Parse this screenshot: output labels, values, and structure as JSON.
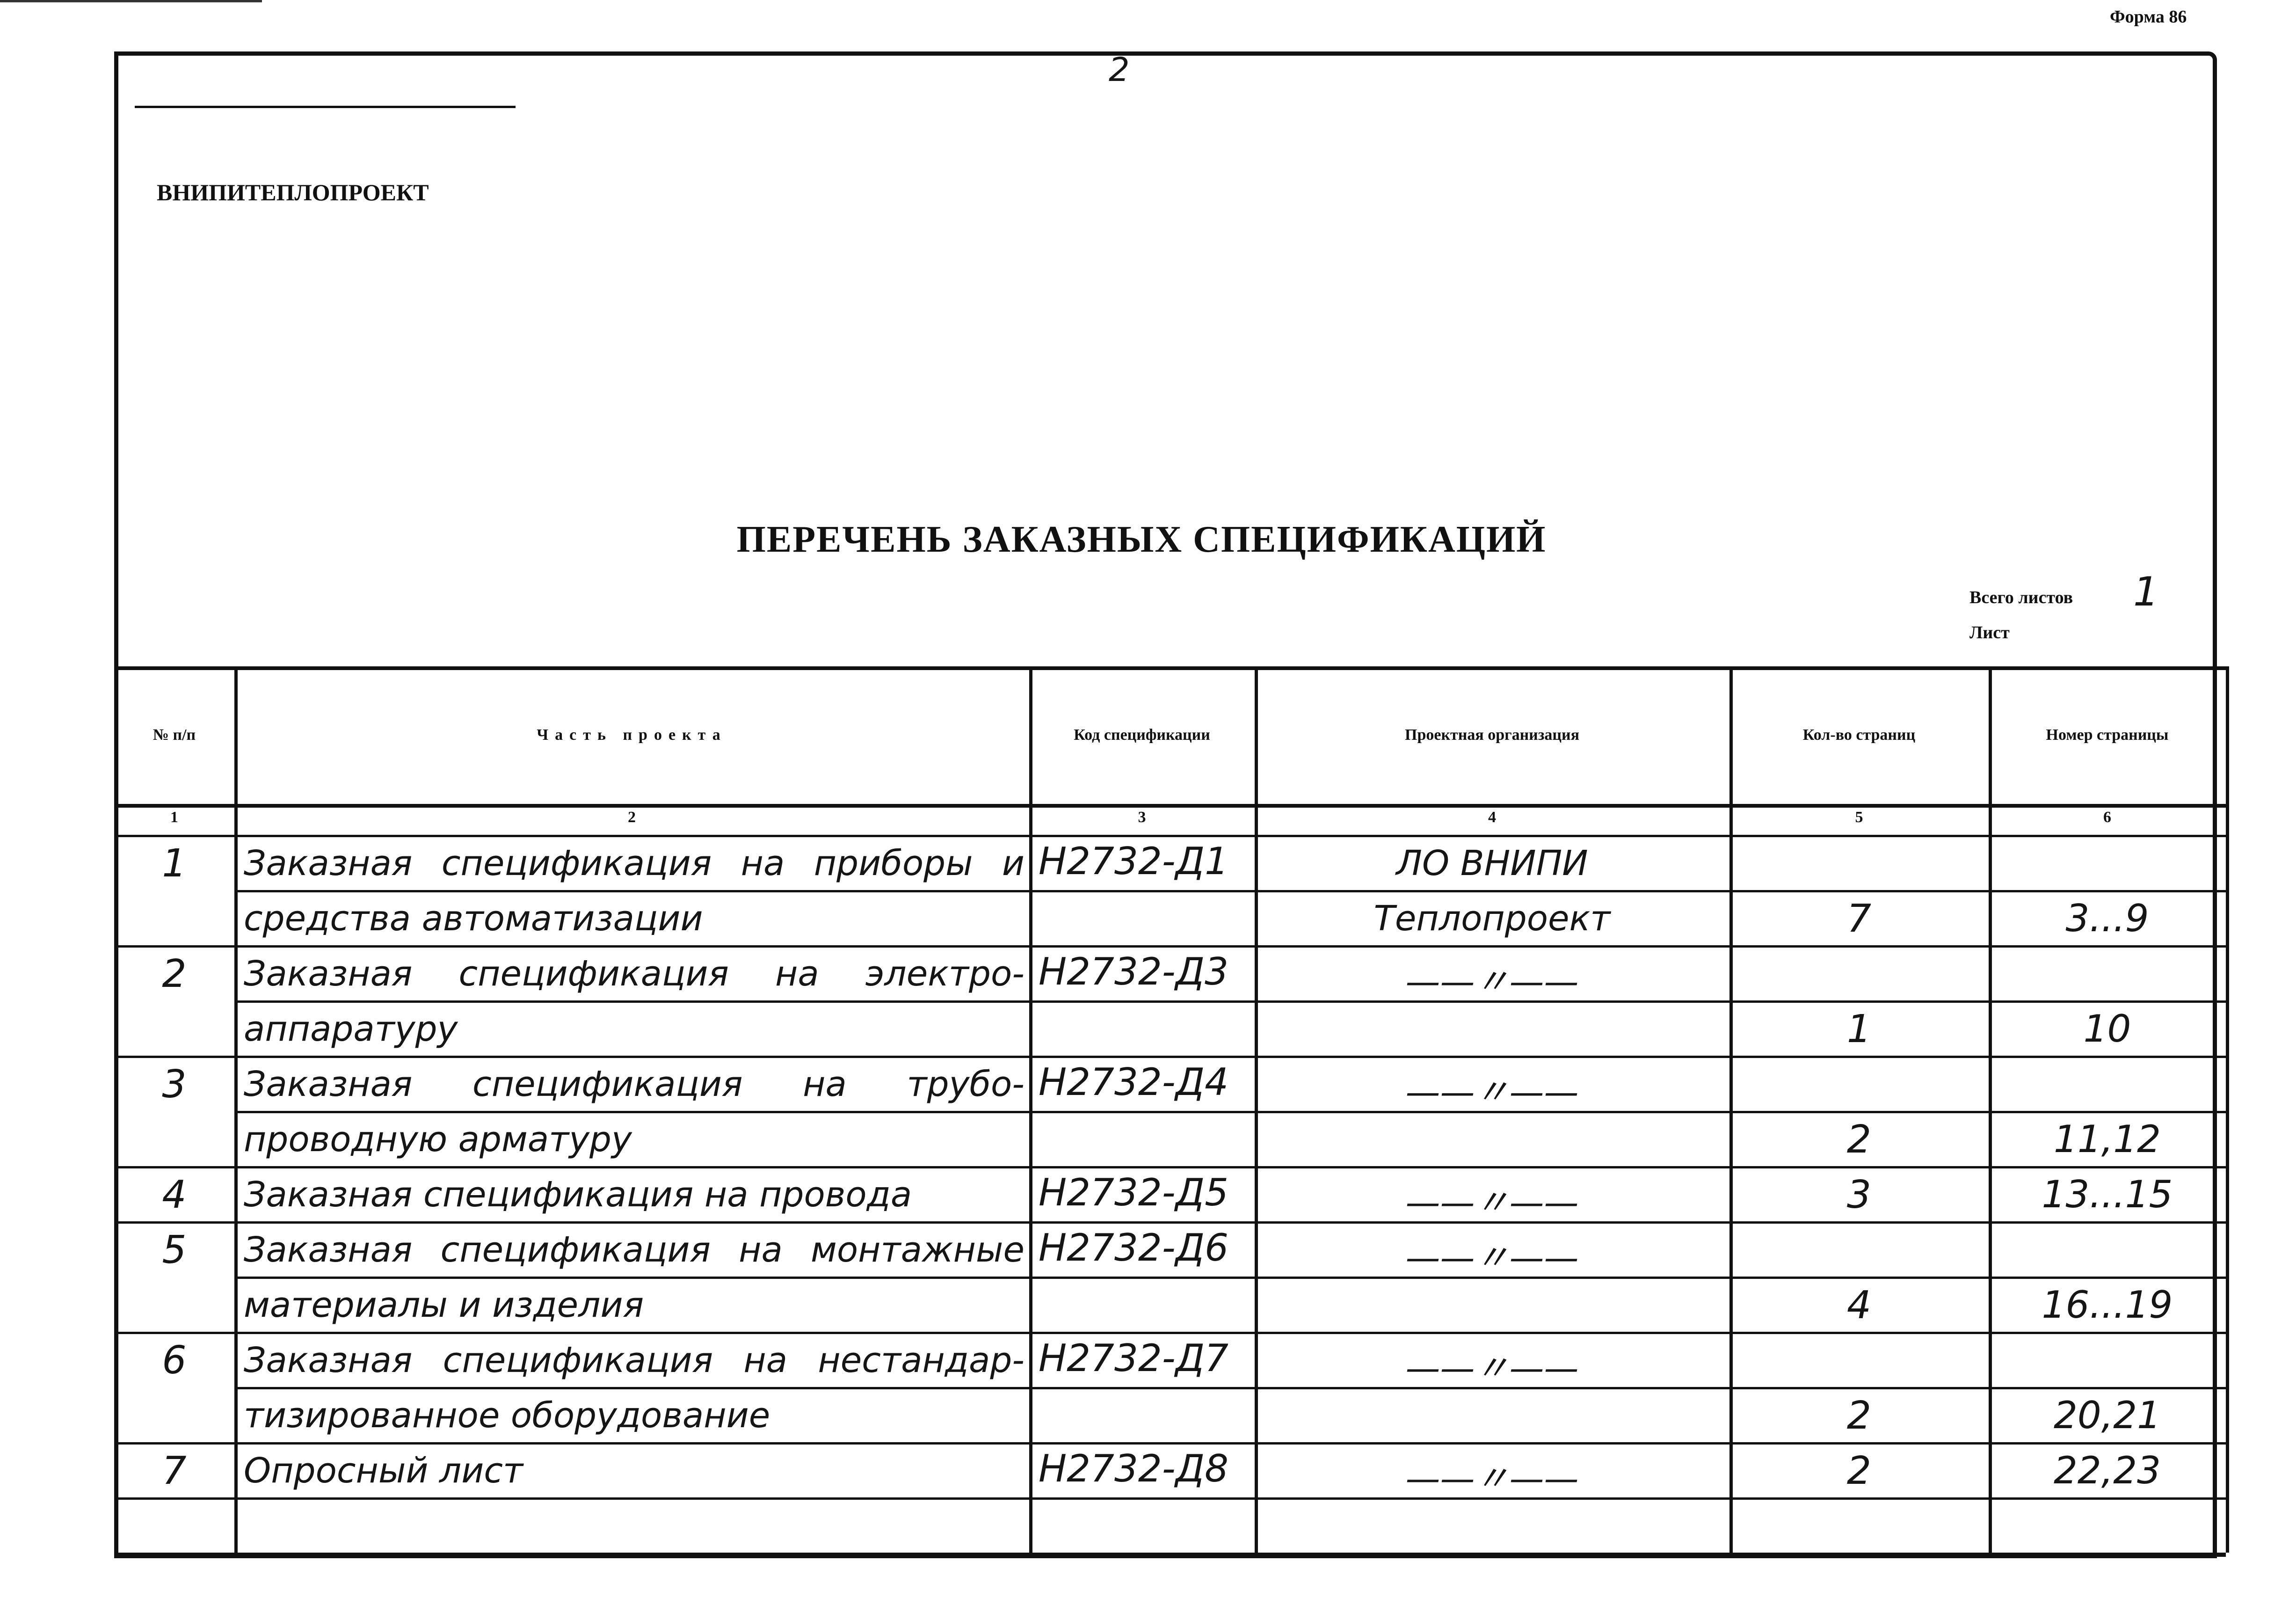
{
  "form_label": "Форма 86",
  "page_number": "2",
  "organization": "ВНИПИТЕПЛОПРОЕКТ",
  "title": "ПЕРЕЧЕНЬ ЗАКАЗНЫХ СПЕЦИФИКАЦИЙ",
  "sheets": {
    "total_label": "Всего листов",
    "total_value": "1",
    "sheet_label": "Лист"
  },
  "table": {
    "headers": [
      "№ п/п",
      "Часть проекта",
      "Код спецификации",
      "Проектная организация",
      "Кол-во страниц",
      "Номер страницы"
    ],
    "column_numbers": [
      "1",
      "2",
      "3",
      "4",
      "5",
      "6"
    ],
    "rows": [
      {
        "num": "1",
        "part": [
          "Заказная спецификация на приборы и",
          "средства автоматизации"
        ],
        "code": "Н2732-Д1",
        "org": [
          "ЛО ВНИПИ",
          "Теплопроект"
        ],
        "pages_count": "7",
        "page_numbers": "3...9"
      },
      {
        "num": "2",
        "part": [
          "Заказная спецификация на электро-",
          "аппаратуру"
        ],
        "code": "Н2732-Д3",
        "org": [
          "——〃——"
        ],
        "pages_count": "1",
        "page_numbers": "10"
      },
      {
        "num": "3",
        "part": [
          "Заказная спецификация на трубо-",
          "проводную арматуру"
        ],
        "code": "Н2732-Д4",
        "org": [
          "——〃——"
        ],
        "pages_count": "2",
        "page_numbers": "11,12"
      },
      {
        "num": "4",
        "part": [
          "Заказная спецификация на провода"
        ],
        "code": "Н2732-Д5",
        "org": [
          "——〃——"
        ],
        "pages_count": "3",
        "page_numbers": "13...15"
      },
      {
        "num": "5",
        "part": [
          "Заказная спецификация на монтажные",
          "материалы и изделия"
        ],
        "code": "Н2732-Д6",
        "org": [
          "——〃——"
        ],
        "pages_count": "4",
        "page_numbers": "16...19"
      },
      {
        "num": "6",
        "part": [
          "Заказная спецификация на нестандар-",
          "тизированное оборудование"
        ],
        "code": "Н2732-Д7",
        "org": [
          "——〃——"
        ],
        "pages_count": "2",
        "page_numbers": "20,21"
      },
      {
        "num": "7",
        "part": [
          "Опросный лист"
        ],
        "code": "Н2732-Д8",
        "org": [
          "——〃——"
        ],
        "pages_count": "2",
        "page_numbers": "22,23"
      }
    ]
  }
}
